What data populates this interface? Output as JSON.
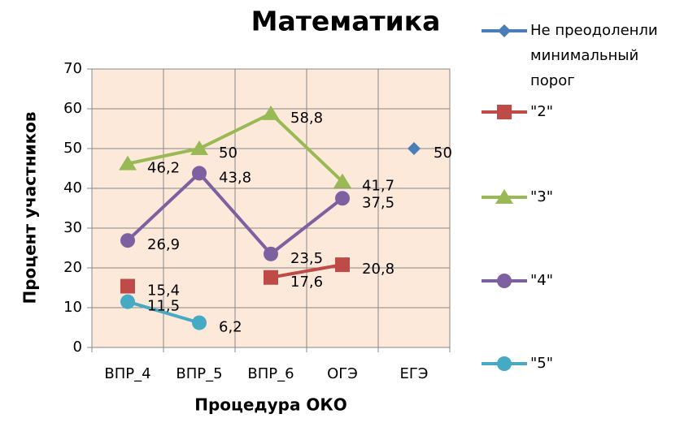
{
  "chart_data": {
    "type": "line",
    "title": "Математика",
    "x_label": "Процедура ОКО",
    "y_label": "Процент участников",
    "categories": [
      "ВПР_4",
      "ВПР_5",
      "ВПР_6",
      "ОГЭ",
      "ЕГЭ"
    ],
    "ylim": [
      0,
      70
    ],
    "yticks": [
      0,
      10,
      20,
      30,
      40,
      50,
      60,
      70
    ],
    "grid": true,
    "legend": "right",
    "series": [
      {
        "name": "Не преодоленли минимальный порог",
        "color": "#4a7ebb",
        "marker": "diamond",
        "values": [
          null,
          null,
          null,
          null,
          50
        ],
        "value_labels": [
          null,
          null,
          null,
          null,
          "50"
        ]
      },
      {
        "name": "\"2\"",
        "color": "#be4b48",
        "marker": "square",
        "values": [
          15.4,
          null,
          17.6,
          20.8,
          null
        ],
        "value_labels": [
          "15,4",
          null,
          "17,6",
          "20,8",
          null
        ]
      },
      {
        "name": "\"3\"",
        "color": "#98b954",
        "marker": "triangle",
        "values": [
          46.2,
          50,
          58.8,
          41.7,
          null
        ],
        "value_labels": [
          "46,2",
          "50",
          "58,8",
          "41,7",
          null
        ]
      },
      {
        "name": "\"4\"",
        "color": "#7d60a0",
        "marker": "circle",
        "values": [
          26.9,
          43.8,
          23.5,
          37.5,
          null
        ],
        "value_labels": [
          "26,9",
          "43,8",
          "23,5",
          "37,5",
          null
        ]
      },
      {
        "name": "\"5\"",
        "color": "#46aac5",
        "marker": "circle",
        "values": [
          11.5,
          6.2,
          null,
          null,
          null
        ],
        "value_labels": [
          "11,5",
          "6,2",
          null,
          null,
          null
        ]
      }
    ]
  }
}
